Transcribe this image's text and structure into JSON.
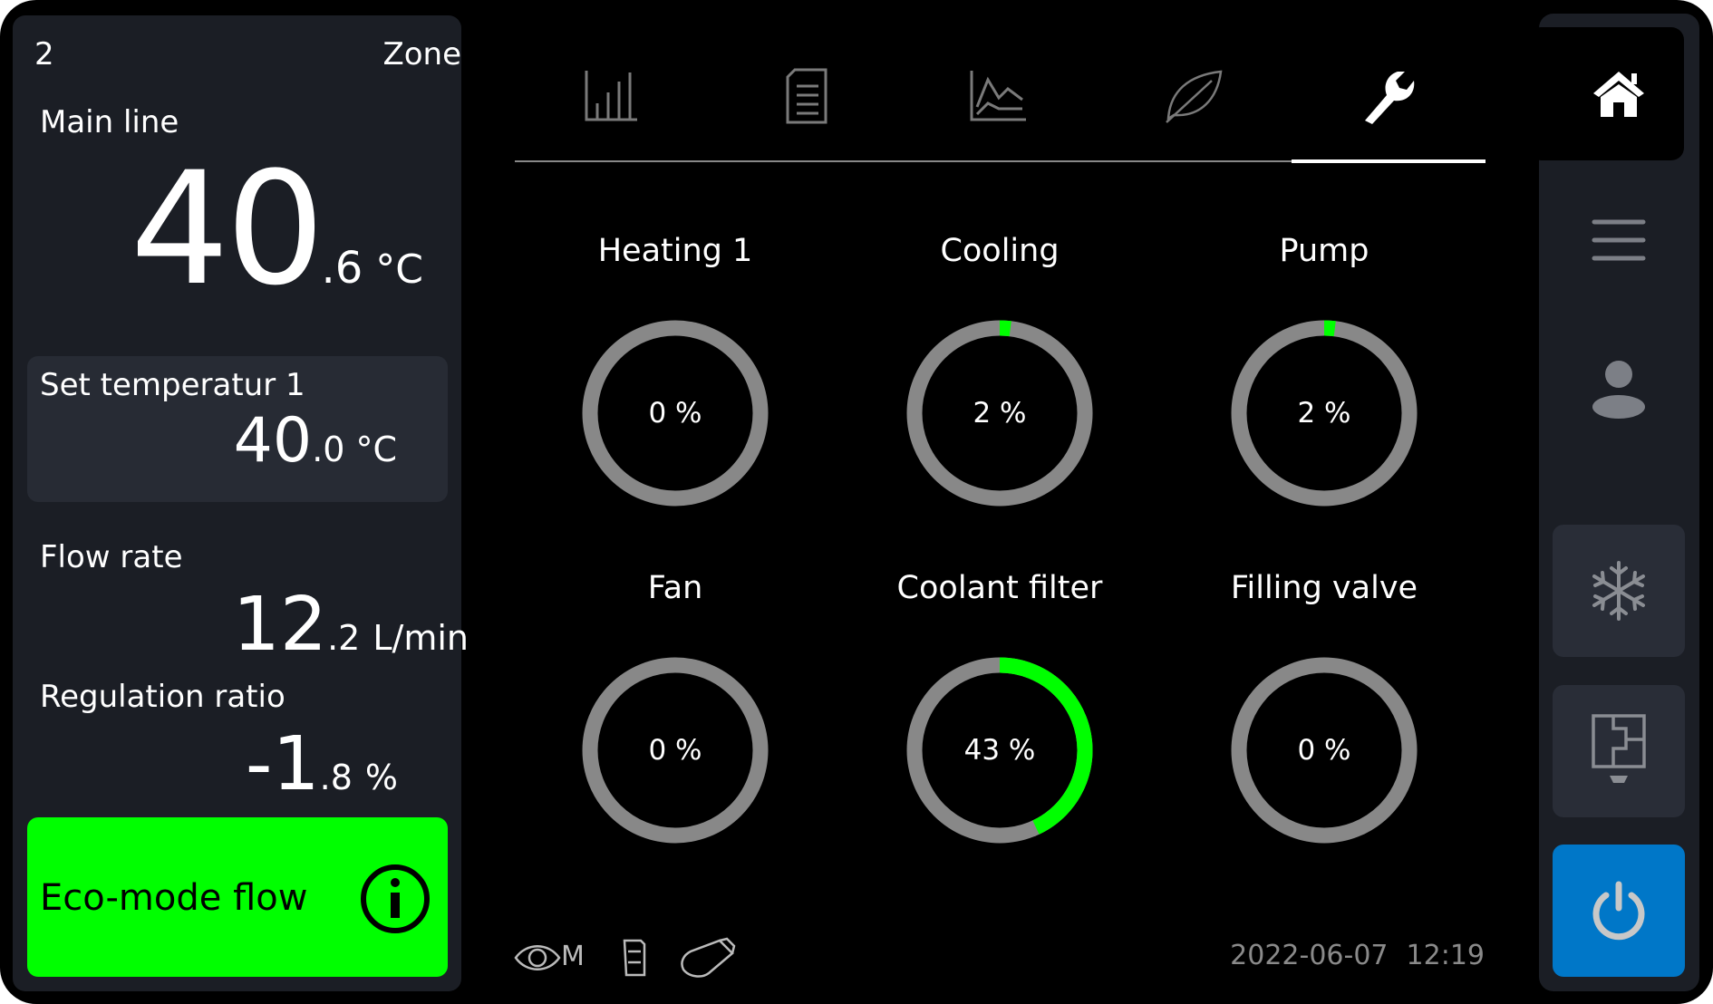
{
  "zone": {
    "number": "2",
    "label": "Zone"
  },
  "main_line": {
    "label": "Main line",
    "value_int": "40",
    "value_dec": ".6",
    "unit": "°C"
  },
  "set_temperature": {
    "label": "Set temperatur 1",
    "value_int": "40",
    "value_dec": ".0",
    "unit": "°C"
  },
  "flow_rate": {
    "label": "Flow rate",
    "value_int": "12",
    "value_dec": ".2",
    "unit": "L/min"
  },
  "regulation_ratio": {
    "label": "Regulation ratio",
    "value_int": "-1",
    "value_dec": ".8",
    "unit": "%"
  },
  "eco_mode": {
    "label": "Eco-mode flow",
    "icon": "info-icon",
    "color": "#00ff00"
  },
  "tabs": [
    {
      "icon": "bar-chart-icon",
      "active": false
    },
    {
      "icon": "document-list-icon",
      "active": false
    },
    {
      "icon": "line-chart-icon",
      "active": false
    },
    {
      "icon": "leaf-icon",
      "active": false
    },
    {
      "icon": "wrench-icon",
      "active": true
    }
  ],
  "gauges": [
    {
      "label": "Heating 1",
      "value": 0,
      "text": "0 %"
    },
    {
      "label": "Cooling",
      "value": 2,
      "text": "2 %"
    },
    {
      "label": "Pump",
      "value": 2,
      "text": "2 %"
    },
    {
      "label": "Fan",
      "value": 0,
      "text": "0 %"
    },
    {
      "label": "Coolant filter",
      "value": 43,
      "text": "43 %"
    },
    {
      "label": "Filling valve",
      "value": 0,
      "text": "0 %"
    }
  ],
  "gauge_colors": {
    "track": "#888888",
    "fill": "#00ff00"
  },
  "status_bar": {
    "indicator": "M",
    "icons": [
      "eye-icon",
      "sd-card-icon",
      "usb-icon"
    ],
    "date": "2022-06-07",
    "time": "12:19"
  },
  "rail": {
    "items": [
      "home-icon",
      "menu-icon",
      "user-icon",
      "snowflake-icon",
      "floor-plan-icon",
      "power-icon"
    ],
    "power_color": "#0077c8"
  }
}
